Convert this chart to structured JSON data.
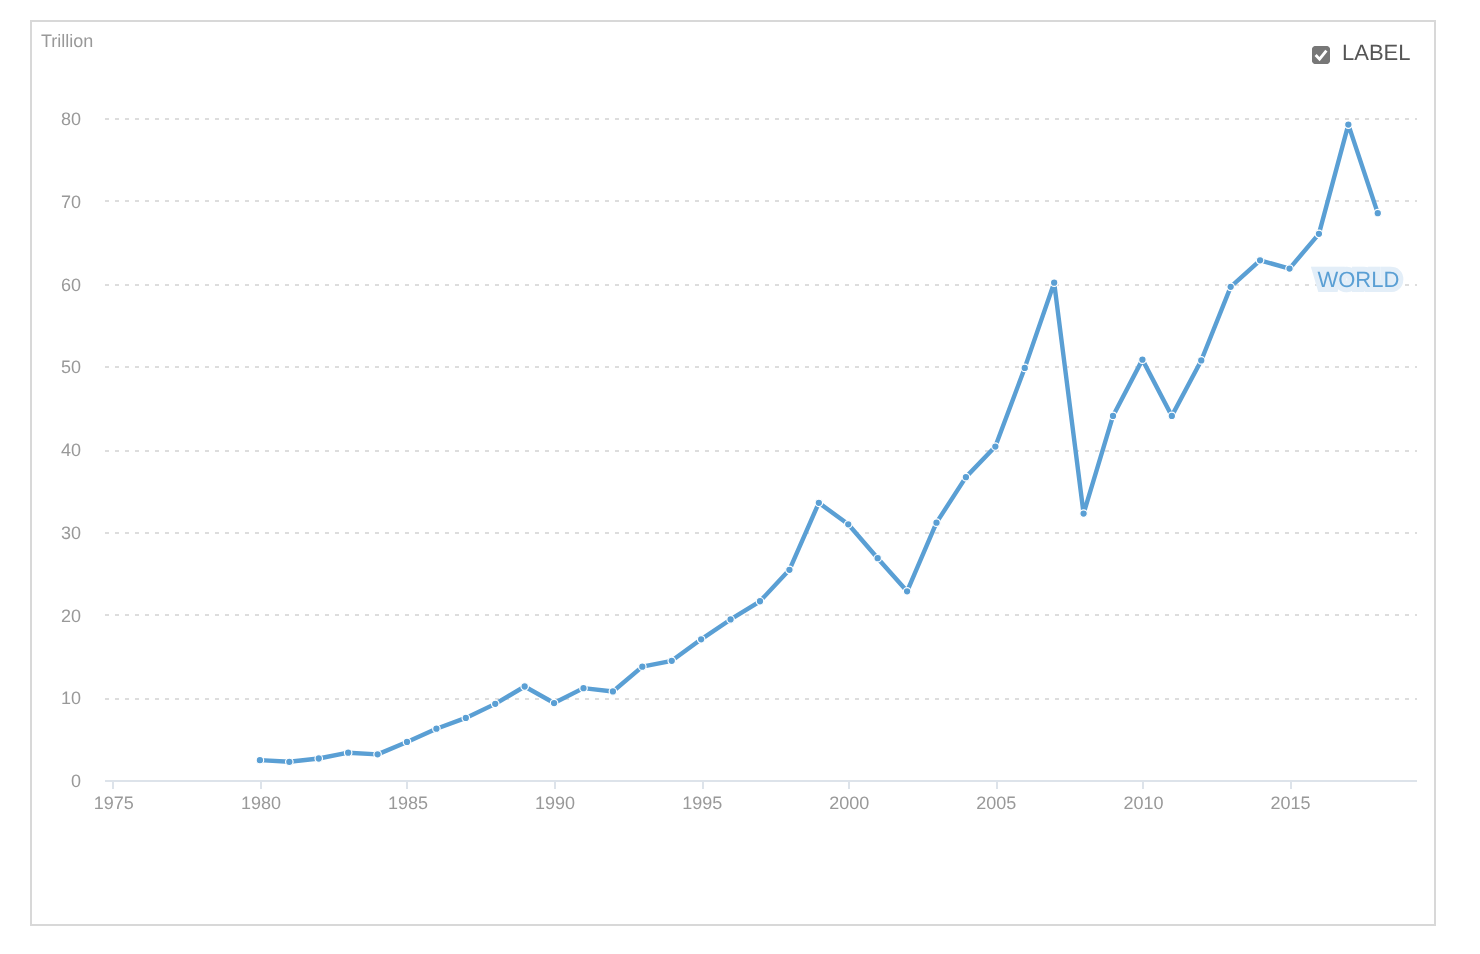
{
  "chart_data": {
    "type": "line",
    "ylabel": "Trillion",
    "annotations": [
      "LABEL"
    ],
    "x": [
      1980,
      1981,
      1982,
      1983,
      1984,
      1985,
      1986,
      1987,
      1988,
      1989,
      1990,
      1991,
      1992,
      1993,
      1994,
      1995,
      1996,
      1997,
      1998,
      1999,
      2000,
      2001,
      2002,
      2003,
      2004,
      2005,
      2006,
      2007,
      2008,
      2009,
      2010,
      2011,
      2012,
      2013,
      2014,
      2015,
      2016,
      2017,
      2018
    ],
    "series": [
      {
        "name": "WORLD",
        "color": "#5a9fd4",
        "values": [
          2.4,
          2.2,
          2.6,
          3.3,
          3.1,
          4.6,
          6.2,
          7.5,
          9.2,
          11.3,
          9.3,
          11.1,
          10.7,
          13.7,
          14.4,
          17.0,
          19.4,
          21.6,
          25.4,
          33.5,
          30.9,
          26.8,
          22.8,
          31.1,
          36.6,
          40.3,
          49.8,
          60.1,
          32.2,
          44.0,
          50.8,
          44.0,
          50.7,
          59.6,
          62.8,
          61.8,
          66,
          79.2,
          68.5
        ]
      }
    ],
    "xlim": [
      1974.7,
      2019.3
    ],
    "xticks": [
      1975,
      1980,
      1985,
      1990,
      1995,
      2000,
      2005,
      2010,
      2015
    ],
    "ylim": [
      0,
      80
    ],
    "yticks": [
      0,
      10,
      20,
      30,
      40,
      50,
      60,
      70,
      80
    ],
    "grid": "y",
    "marker": "circle",
    "line_style": "solid"
  }
}
